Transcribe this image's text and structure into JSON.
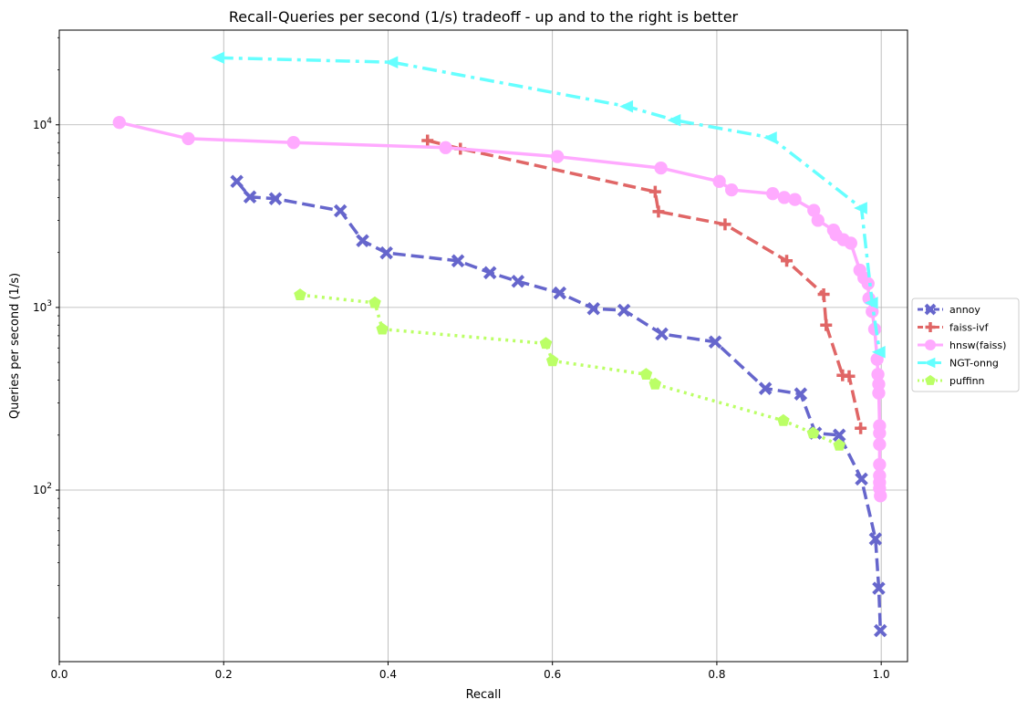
{
  "chart_data": {
    "type": "line",
    "title": "Recall-Queries per second (1/s) tradeoff - up and to the right is better",
    "xlabel": "Recall",
    "ylabel": "Queries per second (1/s)",
    "xlim": [
      0.0,
      1.032
    ],
    "ylim": [
      11.5,
      33000
    ],
    "yscale": "log",
    "grid": true,
    "legend_position": "right, outside plot",
    "x_ticks": [
      0.0,
      0.2,
      0.4,
      0.6,
      0.8,
      1.0
    ],
    "x_tick_labels": [
      "0.0",
      "0.2",
      "0.4",
      "0.6",
      "0.8",
      "1.0"
    ],
    "y_ticks": [
      {
        "value": 100,
        "base": "10",
        "exp": "2"
      },
      {
        "value": 1000,
        "base": "10",
        "exp": "3"
      },
      {
        "value": 10000,
        "base": "10",
        "exp": "4"
      }
    ],
    "series": [
      {
        "name": "annoy",
        "color": "#6666cc",
        "line_style": "dashed",
        "marker": "x",
        "points": [
          [
            0.216,
            4900
          ],
          [
            0.232,
            4030
          ],
          [
            0.263,
            3940
          ],
          [
            0.342,
            3380
          ],
          [
            0.369,
            2320
          ],
          [
            0.398,
            1990
          ],
          [
            0.485,
            1800
          ],
          [
            0.524,
            1550
          ],
          [
            0.558,
            1390
          ],
          [
            0.609,
            1200
          ],
          [
            0.65,
            985
          ],
          [
            0.687,
            965
          ],
          [
            0.733,
            716
          ],
          [
            0.798,
            647
          ],
          [
            0.859,
            360
          ],
          [
            0.902,
            336
          ],
          [
            0.92,
            205
          ],
          [
            0.949,
            200
          ],
          [
            0.976,
            115
          ],
          [
            0.993,
            54
          ],
          [
            0.997,
            29
          ],
          [
            0.999,
            17
          ]
        ]
      },
      {
        "name": "faiss-ivf",
        "color": "#e06666",
        "line_style": "dashed",
        "marker": "plus",
        "points": [
          [
            0.448,
            8200
          ],
          [
            0.488,
            7400
          ],
          [
            0.725,
            4300
          ],
          [
            0.729,
            3350
          ],
          [
            0.81,
            2850
          ],
          [
            0.885,
            1800
          ],
          [
            0.93,
            1180
          ],
          [
            0.933,
            800
          ],
          [
            0.953,
            425
          ],
          [
            0.961,
            420
          ],
          [
            0.975,
            218
          ]
        ]
      },
      {
        "name": "hnsw(faiss)",
        "color": "#ffaaff",
        "line_style": "solid",
        "marker": "circle",
        "points": [
          [
            0.073,
            10300
          ],
          [
            0.157,
            8400
          ],
          [
            0.285,
            8000
          ],
          [
            0.47,
            7500
          ],
          [
            0.606,
            6700
          ],
          [
            0.732,
            5800
          ],
          [
            0.803,
            4900
          ],
          [
            0.818,
            4400
          ],
          [
            0.868,
            4200
          ],
          [
            0.882,
            4000
          ],
          [
            0.895,
            3900
          ],
          [
            0.918,
            3400
          ],
          [
            0.923,
            3000
          ],
          [
            0.942,
            2650
          ],
          [
            0.945,
            2500
          ],
          [
            0.954,
            2350
          ],
          [
            0.963,
            2250
          ],
          [
            0.974,
            1600
          ],
          [
            0.979,
            1450
          ],
          [
            0.984,
            1350
          ],
          [
            0.985,
            1120
          ],
          [
            0.989,
            950
          ],
          [
            0.992,
            760
          ],
          [
            0.995,
            520
          ],
          [
            0.996,
            430
          ],
          [
            0.997,
            380
          ],
          [
            0.997,
            340
          ],
          [
            0.998,
            225
          ],
          [
            0.998,
            205
          ],
          [
            0.998,
            178
          ],
          [
            0.998,
            138
          ],
          [
            0.998,
            120
          ],
          [
            0.998,
            110
          ],
          [
            0.998,
            102
          ],
          [
            0.999,
            93
          ]
        ]
      },
      {
        "name": "NGT-onng",
        "color": "#66ffff",
        "line_style": "dashdot",
        "marker": "triangle-left",
        "points": [
          [
            0.194,
            23300
          ],
          [
            0.405,
            22000
          ],
          [
            0.691,
            12600
          ],
          [
            0.749,
            10600
          ],
          [
            0.866,
            8500
          ],
          [
            0.976,
            3500
          ],
          [
            0.989,
            1060
          ],
          [
            0.998,
            570
          ]
        ]
      },
      {
        "name": "puffinn",
        "color": "#bbff66",
        "line_style": "dotted",
        "marker": "pentagon",
        "points": [
          [
            0.293,
            1170
          ],
          [
            0.384,
            1060
          ],
          [
            0.393,
            760
          ],
          [
            0.592,
            635
          ],
          [
            0.6,
            510
          ],
          [
            0.714,
            430
          ],
          [
            0.725,
            380
          ],
          [
            0.881,
            240
          ],
          [
            0.917,
            205
          ],
          [
            0.949,
            176
          ]
        ]
      }
    ]
  }
}
